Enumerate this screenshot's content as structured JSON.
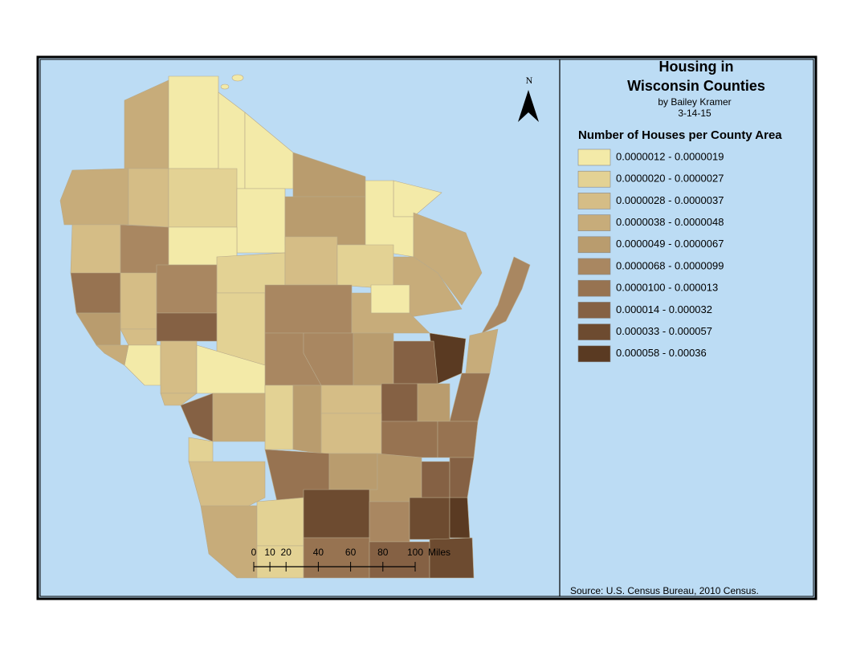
{
  "header": {
    "title_lines": [
      "Housing in",
      "Wisconsin Counties"
    ],
    "author": "by Bailey Kramer",
    "date": "3-14-15"
  },
  "north_arrow": {
    "label": "N"
  },
  "legend": {
    "title": "Number of Houses per County Area",
    "classes": [
      {
        "label": "0.0000012 - 0.0000019",
        "color": "#f3eaa8"
      },
      {
        "label": "0.0000020 - 0.0000027",
        "color": "#e3d294"
      },
      {
        "label": "0.0000028 - 0.0000037",
        "color": "#d5bd86"
      },
      {
        "label": "0.0000038 - 0.0000048",
        "color": "#c7ac7a"
      },
      {
        "label": "0.0000049 - 0.0000067",
        "color": "#b99c6e"
      },
      {
        "label": "0.0000068 - 0.0000099",
        "color": "#a98761"
      },
      {
        "label": "0.0000100 - 0.000013",
        "color": "#977351"
      },
      {
        "label": "0.000014 - 0.000032",
        "color": "#856144"
      },
      {
        "label": "0.000033 - 0.000057",
        "color": "#6d4b30"
      },
      {
        "label": "0.000058 - 0.00036",
        "color": "#5a3a22"
      }
    ]
  },
  "scale_bar": {
    "ticks": [
      0,
      10,
      20,
      40,
      60,
      80,
      100
    ],
    "unit": "Miles"
  },
  "source": "Source: U.S. Census Bureau, 2010 Census."
}
